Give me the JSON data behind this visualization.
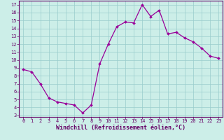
{
  "x": [
    0,
    1,
    2,
    3,
    4,
    5,
    6,
    7,
    8,
    9,
    10,
    11,
    12,
    13,
    14,
    15,
    16,
    17,
    18,
    19,
    20,
    21,
    22,
    23
  ],
  "y": [
    8.8,
    8.5,
    7.0,
    5.2,
    4.7,
    4.5,
    4.3,
    3.3,
    4.3,
    9.5,
    12.0,
    14.2,
    14.8,
    14.7,
    17.0,
    15.5,
    16.3,
    13.3,
    13.5,
    12.8,
    12.3,
    11.5,
    10.5,
    10.2
  ],
  "line_color": "#990099",
  "marker": "D",
  "marker_size": 2.0,
  "bg_color": "#cceee8",
  "grid_color": "#99cccc",
  "xlabel": "Windchill (Refroidissement éolien,°C)",
  "xlim": [
    -0.5,
    23.5
  ],
  "ylim": [
    2.8,
    17.5
  ],
  "yticks": [
    3,
    4,
    5,
    6,
    7,
    8,
    9,
    10,
    11,
    12,
    13,
    14,
    15,
    16,
    17
  ],
  "xticks": [
    0,
    1,
    2,
    3,
    4,
    5,
    6,
    7,
    8,
    9,
    10,
    11,
    12,
    13,
    14,
    15,
    16,
    17,
    18,
    19,
    20,
    21,
    22,
    23
  ],
  "tick_color": "#660066",
  "tick_fontsize": 5.0,
  "xlabel_fontsize": 6.0,
  "border_color": "#660066",
  "line_width": 0.9
}
